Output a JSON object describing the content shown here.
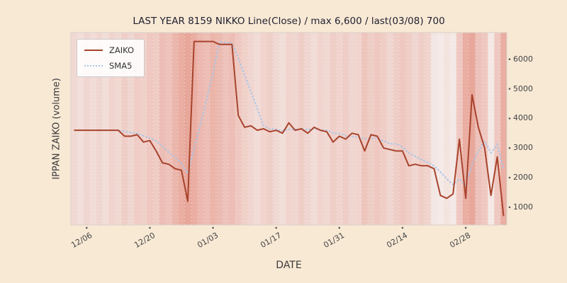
{
  "chart_data": {
    "type": "line",
    "title": "LAST YEAR 8159 NIKKO Line(Close) / max 6,600 / last(03/08) 700",
    "xlabel": "DATE",
    "ylabel": "IPPAN ZAIKO (volume)",
    "x_tick_labels": [
      "12/06",
      "12/20",
      "01/03",
      "01/17",
      "01/31",
      "02/14",
      "02/28"
    ],
    "x_tick_indices": [
      2,
      12,
      22,
      32,
      42,
      52,
      62
    ],
    "y_ticks": [
      1000,
      2000,
      3000,
      4000,
      5000,
      6000
    ],
    "ylim": [
      400,
      6900
    ],
    "n_points": 69,
    "legend_position": "upper left",
    "grid": "vertical-day-separators",
    "series": [
      {
        "name": "ZAIKO",
        "color": "#a8432c",
        "style": "solid",
        "values": [
          3600,
          3600,
          3600,
          3600,
          3600,
          3600,
          3600,
          3600,
          3400,
          3400,
          3450,
          3200,
          3250,
          2900,
          2500,
          2450,
          2300,
          2250,
          1200,
          6600,
          6600,
          6600,
          6600,
          6500,
          6500,
          6500,
          4100,
          3700,
          3750,
          3600,
          3650,
          3550,
          3600,
          3500,
          3850,
          3600,
          3650,
          3500,
          3700,
          3600,
          3550,
          3200,
          3400,
          3300,
          3500,
          3450,
          2900,
          3450,
          3400,
          3000,
          2950,
          2900,
          2900,
          2400,
          2450,
          2400,
          2400,
          2300,
          1400,
          1300,
          1450,
          3300,
          1300,
          4800,
          3700,
          3000,
          1400,
          2700,
          700
        ]
      },
      {
        "name": "SMA5",
        "color": "#a9c6e8",
        "style": "dotted",
        "window": 5,
        "source": "ZAIKO"
      }
    ],
    "background_bands": {
      "color": "#dd6a55",
      "alphas": [
        0.18,
        0.14,
        0.2,
        0.16,
        0.2,
        0.15,
        0.22,
        0.18,
        0.26,
        0.2,
        0.28,
        0.24,
        0.3,
        0.28,
        0.38,
        0.34,
        0.44,
        0.5,
        0.55,
        0.5,
        0.42,
        0.38,
        0.45,
        0.4,
        0.34,
        0.38,
        0.3,
        0.24,
        0.2,
        0.16,
        0.22,
        0.25,
        0.18,
        0.15,
        0.22,
        0.2,
        0.26,
        0.2,
        0.16,
        0.22,
        0.18,
        0.26,
        0.22,
        0.26,
        0.2,
        0.22,
        0.32,
        0.26,
        0.3,
        0.26,
        0.2,
        0.26,
        0.3,
        0.26,
        0.2,
        0.26,
        0.22,
        0.08,
        0.05,
        0.1,
        0.06,
        0.3,
        0.5,
        0.55,
        0.35,
        0.3,
        0.06,
        0.3,
        0.5
      ]
    }
  },
  "colors": {
    "figure_background": "#f8e9d5",
    "plot_background": "#f6f2f0",
    "tick_text": "#444444",
    "title_text": "#1f1f2e"
  }
}
